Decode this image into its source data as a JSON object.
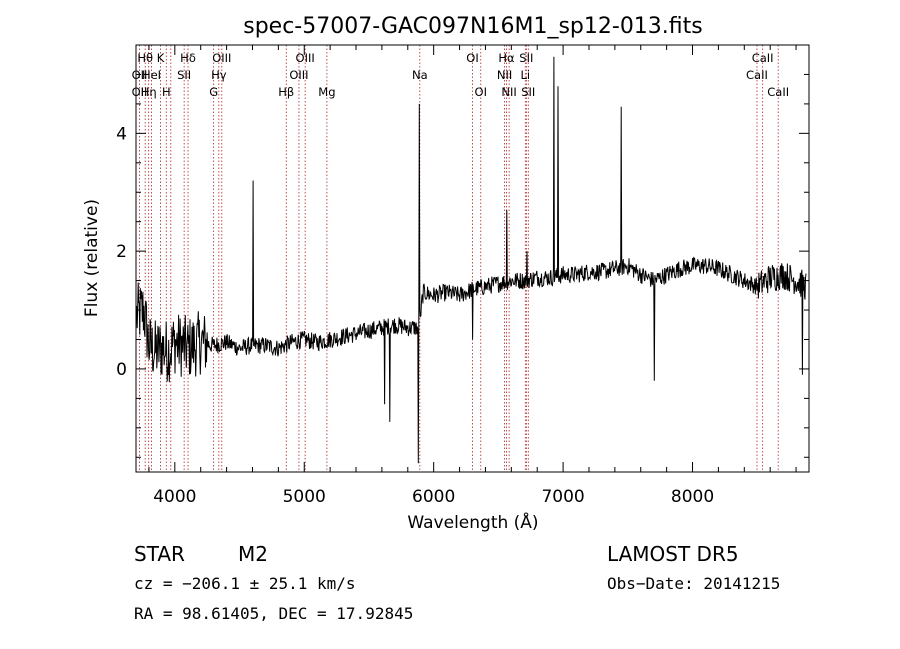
{
  "chart_data": {
    "type": "line",
    "title": "spec-57007-GAC097N16M1_sp12-013.fits",
    "xlabel": "Wavelength (Å)",
    "ylabel": "Flux (relative)",
    "xlim": [
      3700,
      8900
    ],
    "ylim": [
      -1.75,
      5.5
    ],
    "xticks": [
      4000,
      5000,
      6000,
      7000,
      8000
    ],
    "xtick_labels": [
      "4000",
      "5000",
      "6000",
      "7000",
      "8000"
    ],
    "yticks": [
      0,
      2,
      4
    ],
    "ytick_labels": [
      "0",
      "2",
      "4"
    ],
    "grid": false,
    "spectrum_anchor_points": [
      [
        3705,
        0.9
      ],
      [
        3760,
        1.0
      ],
      [
        3800,
        0.4
      ],
      [
        3850,
        0.3
      ],
      [
        3900,
        0.35
      ],
      [
        3950,
        0.3
      ],
      [
        4000,
        0.45
      ],
      [
        4100,
        0.35
      ],
      [
        4200,
        0.45
      ],
      [
        4300,
        0.4
      ],
      [
        4400,
        0.45
      ],
      [
        4500,
        0.35
      ],
      [
        4600,
        0.4
      ],
      [
        4700,
        0.4
      ],
      [
        4800,
        0.35
      ],
      [
        4900,
        0.45
      ],
      [
        5000,
        0.5
      ],
      [
        5100,
        0.45
      ],
      [
        5200,
        0.5
      ],
      [
        5300,
        0.55
      ],
      [
        5400,
        0.6
      ],
      [
        5500,
        0.65
      ],
      [
        5600,
        0.7
      ],
      [
        5700,
        0.75
      ],
      [
        5800,
        0.7
      ],
      [
        5880,
        0.7
      ],
      [
        5920,
        1.3
      ],
      [
        6000,
        1.25
      ],
      [
        6100,
        1.3
      ],
      [
        6200,
        1.25
      ],
      [
        6300,
        1.35
      ],
      [
        6400,
        1.4
      ],
      [
        6500,
        1.45
      ],
      [
        6600,
        1.5
      ],
      [
        6700,
        1.5
      ],
      [
        6800,
        1.55
      ],
      [
        6900,
        1.55
      ],
      [
        7000,
        1.6
      ],
      [
        7100,
        1.6
      ],
      [
        7200,
        1.65
      ],
      [
        7300,
        1.65
      ],
      [
        7400,
        1.7
      ],
      [
        7500,
        1.75
      ],
      [
        7600,
        1.6
      ],
      [
        7700,
        1.5
      ],
      [
        7800,
        1.6
      ],
      [
        7900,
        1.7
      ],
      [
        8000,
        1.75
      ],
      [
        8100,
        1.75
      ],
      [
        8200,
        1.7
      ],
      [
        8300,
        1.6
      ],
      [
        8400,
        1.5
      ],
      [
        8500,
        1.4
      ],
      [
        8600,
        1.55
      ],
      [
        8700,
        1.6
      ],
      [
        8800,
        1.5
      ],
      [
        8880,
        1.4
      ]
    ],
    "spectrum_features": [
      [
        4605,
        3.2
      ],
      [
        4610,
        0.4
      ],
      [
        5620,
        -0.6
      ],
      [
        5660,
        -0.9
      ],
      [
        5880,
        -1.6
      ],
      [
        5890,
        4.5
      ],
      [
        5900,
        0.9
      ],
      [
        6300,
        0.5
      ],
      [
        6565,
        2.7
      ],
      [
        6720,
        2.0
      ],
      [
        6930,
        5.3
      ],
      [
        6960,
        4.8
      ],
      [
        7450,
        4.45
      ],
      [
        7705,
        -0.2
      ],
      [
        8850,
        -0.1
      ]
    ],
    "noise_level": 0.15,
    "emission_lines": [
      {
        "wavelength": 3727,
        "labels": [
          "OII",
          "OII"
        ],
        "rows": [
          2,
          3
        ]
      },
      {
        "wavelength": 3771,
        "labels": [
          "Hθ"
        ],
        "rows": [
          1
        ]
      },
      {
        "wavelength": 3798,
        "labels": [
          "Hη"
        ],
        "rows": [
          3
        ]
      },
      {
        "wavelength": 3820,
        "labels": [
          "HeI"
        ],
        "rows": [
          2
        ]
      },
      {
        "wavelength": 3889,
        "labels": [
          "K"
        ],
        "rows": [
          1
        ]
      },
      {
        "wavelength": 3934,
        "labels": [
          "H"
        ],
        "rows": [
          3
        ]
      },
      {
        "wavelength": 3969,
        "labels": [],
        "rows": []
      },
      {
        "wavelength": 4072,
        "labels": [
          "SII"
        ],
        "rows": [
          2
        ]
      },
      {
        "wavelength": 4102,
        "labels": [
          "Hδ"
        ],
        "rows": [
          1
        ]
      },
      {
        "wavelength": 4300,
        "labels": [
          "G"
        ],
        "rows": [
          3
        ]
      },
      {
        "wavelength": 4340,
        "labels": [
          "Hγ"
        ],
        "rows": [
          2
        ]
      },
      {
        "wavelength": 4363,
        "labels": [
          "OIII"
        ],
        "rows": [
          1
        ]
      },
      {
        "wavelength": 4861,
        "labels": [
          "Hβ"
        ],
        "rows": [
          3
        ]
      },
      {
        "wavelength": 4959,
        "labels": [
          "OIII"
        ],
        "rows": [
          2
        ]
      },
      {
        "wavelength": 5007,
        "labels": [
          "OIII"
        ],
        "rows": [
          1
        ]
      },
      {
        "wavelength": 5175,
        "labels": [
          "Mg"
        ],
        "rows": [
          3
        ]
      },
      {
        "wavelength": 5893,
        "labels": [
          "Na"
        ],
        "rows": [
          2
        ]
      },
      {
        "wavelength": 6300,
        "labels": [
          "OI"
        ],
        "rows": [
          1
        ]
      },
      {
        "wavelength": 6364,
        "labels": [
          "OI"
        ],
        "rows": [
          3
        ]
      },
      {
        "wavelength": 6548,
        "labels": [
          "NII"
        ],
        "rows": [
          2
        ]
      },
      {
        "wavelength": 6563,
        "labels": [
          "Hα"
        ],
        "rows": [
          1
        ]
      },
      {
        "wavelength": 6583,
        "labels": [
          "NII"
        ],
        "rows": [
          3
        ]
      },
      {
        "wavelength": 6708,
        "labels": [
          "Li"
        ],
        "rows": [
          2
        ]
      },
      {
        "wavelength": 6716,
        "labels": [
          "SII"
        ],
        "rows": [
          1
        ]
      },
      {
        "wavelength": 6731,
        "labels": [
          "SII"
        ],
        "rows": [
          3
        ]
      },
      {
        "wavelength": 8498,
        "labels": [
          "CaII"
        ],
        "rows": [
          2
        ]
      },
      {
        "wavelength": 8542,
        "labels": [
          "CaII"
        ],
        "rows": [
          1
        ]
      },
      {
        "wavelength": 8662,
        "labels": [
          "CaII"
        ],
        "rows": [
          3
        ]
      }
    ]
  },
  "info": {
    "class": "STAR",
    "subclass": "M2",
    "survey": "LAMOST DR5",
    "cz": "cz = −206.1 ± 25.1 km/s",
    "obsdate": "Obs−Date: 20141215",
    "radec": "RA =  98.61405, DEC =  17.92845"
  },
  "colors": {
    "spectrum": "#000000",
    "line_marker": "#b22222",
    "axes": "#000000"
  }
}
